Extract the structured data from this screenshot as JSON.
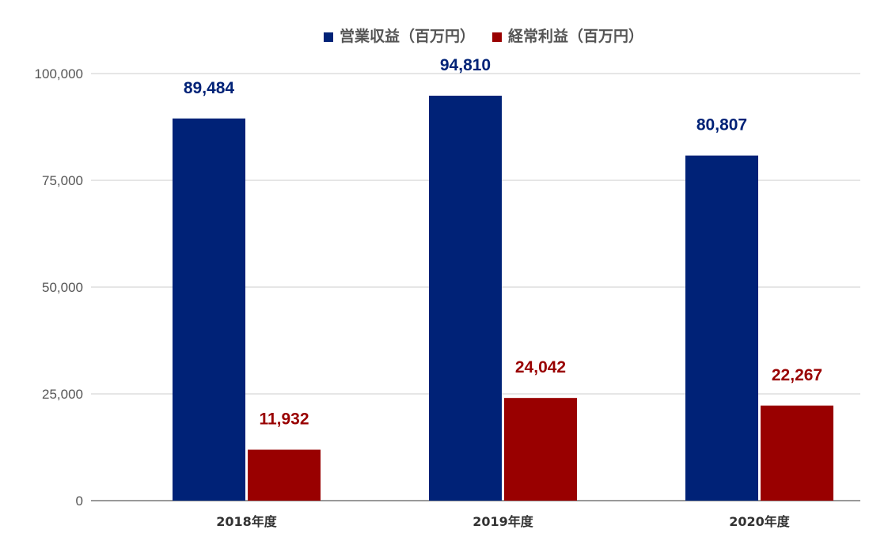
{
  "chart_data": {
    "type": "bar",
    "categories": [
      "2018年度",
      "2019年度",
      "2020年度"
    ],
    "series": [
      {
        "name": "営業収益（百万円）",
        "color": "#002277",
        "values": [
          89484,
          94810,
          80807
        ],
        "labels": [
          "89,484",
          "94,810",
          "80,807"
        ]
      },
      {
        "name": "経常利益（百万円）",
        "color": "#990000",
        "values": [
          11932,
          24042,
          22267
        ],
        "labels": [
          "11,932",
          "24,042",
          "22,267"
        ]
      }
    ],
    "ylim": [
      0,
      100000
    ],
    "yticks": [
      0,
      25000,
      50000,
      75000,
      100000
    ],
    "ytick_labels": [
      "0",
      "25,000",
      "50,000",
      "75,000",
      "100,000"
    ],
    "legend_position": "top-center",
    "grid": true
  }
}
